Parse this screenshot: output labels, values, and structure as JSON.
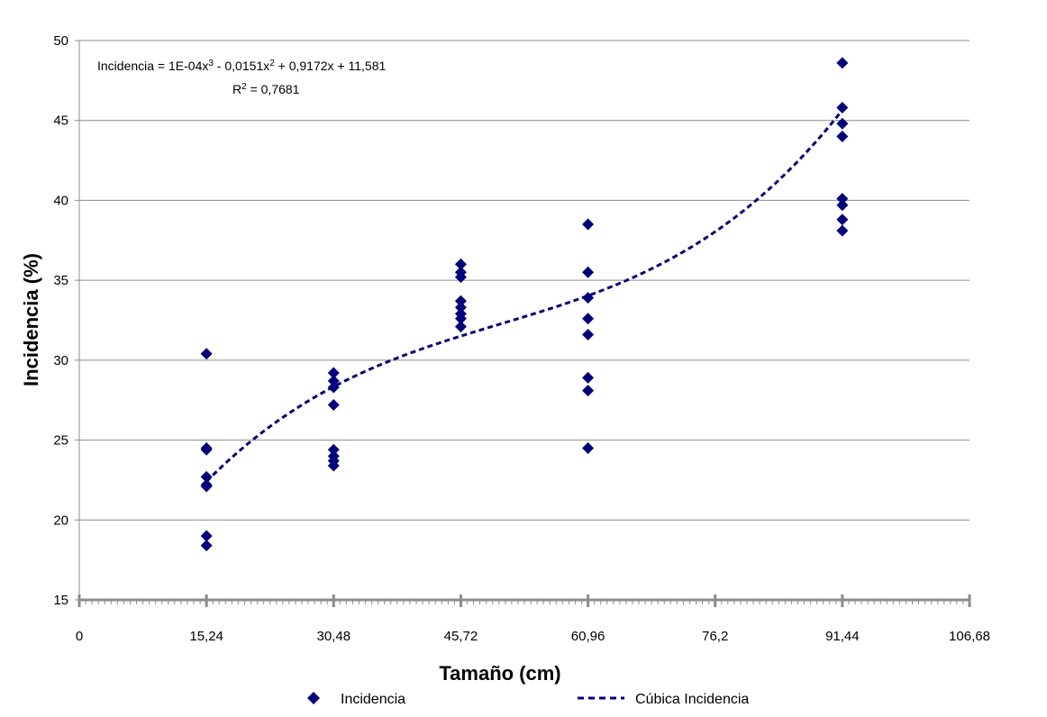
{
  "chart_data": {
    "type": "scatter",
    "xlabel": "Tamaño (cm)",
    "ylabel": "Incidencia (%)",
    "xlim": [
      0,
      106.68
    ],
    "ylim": [
      15,
      50
    ],
    "x_ticks": [
      "0",
      "15,24",
      "30,48",
      "45,72",
      "60,96",
      "76,2",
      "91,44",
      "106,68"
    ],
    "y_ticks": [
      "15",
      "20",
      "25",
      "30",
      "35",
      "40",
      "45",
      "50"
    ],
    "grid": "horizontal",
    "legend_position": "bottom",
    "series": [
      {
        "name": "Incidencia",
        "marker": "diamond",
        "color": "#000080",
        "points": [
          [
            15.24,
            30.4
          ],
          [
            15.24,
            24.5
          ],
          [
            15.24,
            24.4
          ],
          [
            15.24,
            22.7
          ],
          [
            15.24,
            22.2
          ],
          [
            15.24,
            22.1
          ],
          [
            15.24,
            19.0
          ],
          [
            15.24,
            18.4
          ],
          [
            30.48,
            29.2
          ],
          [
            30.48,
            28.7
          ],
          [
            30.48,
            28.3
          ],
          [
            30.48,
            27.2
          ],
          [
            30.48,
            24.4
          ],
          [
            30.48,
            24.0
          ],
          [
            30.48,
            23.7
          ],
          [
            30.48,
            23.4
          ],
          [
            45.72,
            36.0
          ],
          [
            45.72,
            35.5
          ],
          [
            45.72,
            35.2
          ],
          [
            45.72,
            33.7
          ],
          [
            45.72,
            33.3
          ],
          [
            45.72,
            32.9
          ],
          [
            45.72,
            32.6
          ],
          [
            45.72,
            32.1
          ],
          [
            60.96,
            38.5
          ],
          [
            60.96,
            35.5
          ],
          [
            60.96,
            33.9
          ],
          [
            60.96,
            32.6
          ],
          [
            60.96,
            31.6
          ],
          [
            60.96,
            28.9
          ],
          [
            60.96,
            28.1
          ],
          [
            60.96,
            24.5
          ],
          [
            91.44,
            48.6
          ],
          [
            91.44,
            45.8
          ],
          [
            91.44,
            44.8
          ],
          [
            91.44,
            44.0
          ],
          [
            91.44,
            40.1
          ],
          [
            91.44,
            39.7
          ],
          [
            91.44,
            38.8
          ],
          [
            91.44,
            38.1
          ]
        ]
      }
    ],
    "trendline": {
      "name": "Cúbica Incidencia",
      "color": "#000080",
      "style": "dashed",
      "coefficients": [
        0.0001,
        -0.0151,
        0.9172,
        11.581
      ],
      "x_range": [
        15.24,
        91.44
      ]
    },
    "annotation": {
      "equation_prefix": "Incidencia = 1E-04x",
      "equation_sup1": "3",
      "equation_mid": " - 0,0151x",
      "equation_sup2": "2",
      "equation_suffix": " + 0,9172x + 11,581",
      "r2_prefix": "R",
      "r2_sup": "2",
      "r2_value": " = 0,7681"
    }
  }
}
